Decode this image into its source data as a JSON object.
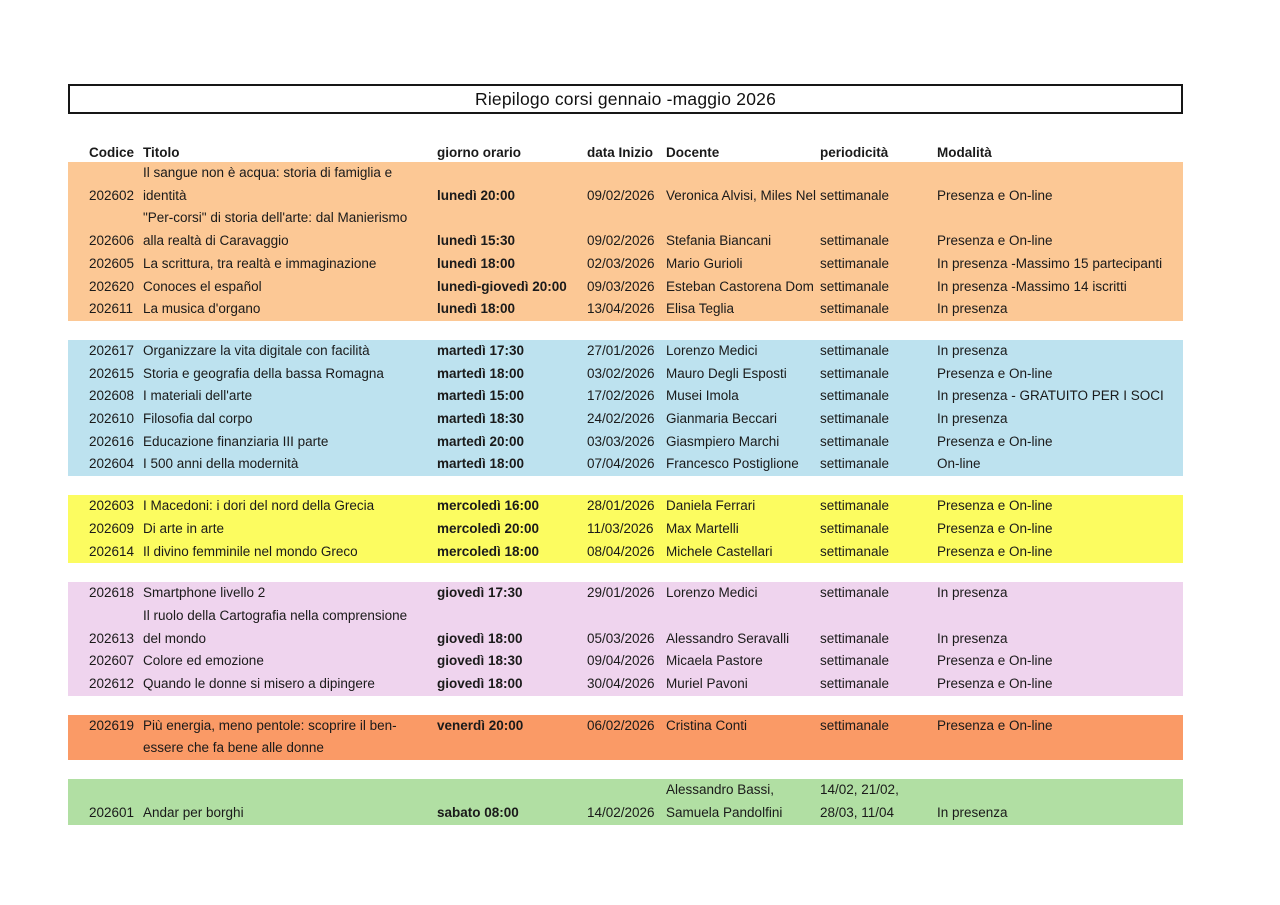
{
  "title": "Riepilogo corsi gennaio -maggio 2026",
  "columns": [
    "Codice",
    "Titolo",
    "giorno orario",
    "data Inizio",
    "Docente",
    "periodicità",
    "Modalità"
  ],
  "groups": [
    {
      "name": "lunedi",
      "color": "#FCC895",
      "lines": [
        [
          "",
          "Il sangue non è acqua: storia di famiglia e",
          "",
          "",
          "",
          "",
          ""
        ],
        [
          "202602",
          "identità",
          "lunedì 20:00",
          "09/02/2026",
          "Veronica Alvisi, Miles Nel",
          "settimanale",
          "Presenza e On-line"
        ],
        [
          "",
          "\"Per-corsi\" di storia dell'arte: dal Manierismo",
          "",
          "",
          "",
          "",
          ""
        ],
        [
          "202606",
          "alla realtà di Caravaggio",
          "lunedì 15:30",
          "09/02/2026",
          "Stefania Biancani",
          "settimanale",
          "Presenza e On-line"
        ],
        [
          "202605",
          "La scrittura, tra realtà e immaginazione",
          "lunedì 18:00",
          "02/03/2026",
          "Mario Gurioli",
          "settimanale",
          "In presenza -Massimo 15 partecipanti"
        ],
        [
          "202620",
          "Conoces el español",
          "lunedì-giovedì 20:00",
          "09/03/2026",
          "Esteban Castorena Dom",
          "settimanale",
          "In presenza -Massimo 14 iscritti"
        ],
        [
          "202611",
          "La musica d'organo",
          "lunedì 18:00",
          "13/04/2026",
          "Elisa Teglia",
          "settimanale",
          "In presenza"
        ]
      ]
    },
    {
      "name": "martedi",
      "color": "#BDE2EF",
      "lines": [
        [
          "202617",
          "Organizzare la vita digitale con facilità",
          "martedì 17:30",
          "27/01/2026",
          "Lorenzo Medici",
          "settimanale",
          "In presenza"
        ],
        [
          "202615",
          "Storia e geografia della bassa Romagna",
          "martedì 18:00",
          "03/02/2026",
          "Mauro Degli Esposti",
          "settimanale",
          "Presenza e On-line"
        ],
        [
          "202608",
          "I materiali dell'arte",
          "martedì 15:00",
          "17/02/2026",
          "Musei Imola",
          "settimanale",
          "In presenza - GRATUITO PER I SOCI"
        ],
        [
          "202610",
          "Filosofia dal corpo",
          "martedì 18:30",
          "24/02/2026",
          "Gianmaria Beccari",
          "settimanale",
          "In presenza"
        ],
        [
          "202616",
          "Educazione finanziaria III parte",
          "martedì 20:00",
          "03/03/2026",
          "Giasmpiero Marchi",
          "settimanale",
          "Presenza e On-line"
        ],
        [
          "202604",
          "I 500 anni della modernità",
          "martedì 18:00",
          "07/04/2026",
          "Francesco Postiglione",
          "settimanale",
          "On-line"
        ]
      ]
    },
    {
      "name": "mercoledi",
      "color": "#FCFC60",
      "lines": [
        [
          "202603",
          "I Macedoni: i dori del nord della Grecia",
          "mercoledì 16:00",
          "28/01/2026",
          "Daniela Ferrari",
          "settimanale",
          "Presenza e On-line"
        ],
        [
          "202609",
          "Di arte in arte",
          "mercoledì 20:00",
          "11/03/2026",
          "Max Martelli",
          "settimanale",
          "Presenza e On-line"
        ],
        [
          "202614",
          "Il divino femminile nel mondo Greco",
          "mercoledì 18:00",
          "08/04/2026",
          "Michele Castellari",
          "settimanale",
          "Presenza e On-line"
        ]
      ]
    },
    {
      "name": "giovedi",
      "color": "#EFD4EE",
      "lines": [
        [
          "202618",
          "Smartphone livello 2",
          "giovedì 17:30",
          "29/01/2026",
          "Lorenzo Medici",
          "settimanale",
          "In presenza"
        ],
        [
          "",
          "Il ruolo della Cartografia nella comprensione",
          "",
          "",
          "",
          "",
          ""
        ],
        [
          "202613",
          "del mondo",
          "giovedì 18:00",
          "05/03/2026",
          "Alessandro Seravalli",
          "settimanale",
          "In presenza"
        ],
        [
          "202607",
          "Colore ed emozione",
          "giovedì 18:30",
          "09/04/2026",
          "Micaela Pastore",
          "settimanale",
          "Presenza e On-line"
        ],
        [
          "202612",
          "Quando le donne si misero a dipingere",
          "giovedì 18:00",
          "30/04/2026",
          "Muriel Pavoni",
          "settimanale",
          "Presenza e On-line"
        ]
      ]
    },
    {
      "name": "venerdi",
      "color": "#FA9A66",
      "lines": [
        [
          "202619",
          "Più energia, meno pentole: scoprire il ben-",
          "venerdì 20:00",
          "06/02/2026",
          "Cristina Conti",
          "settimanale",
          "Presenza e On-line"
        ],
        [
          "",
          "essere che fa bene alle donne",
          "",
          "",
          "",
          "",
          ""
        ]
      ]
    },
    {
      "name": "sabato",
      "color": "#B1DFA3",
      "lines": [
        [
          "",
          "",
          "",
          "",
          "Alessandro Bassi,",
          "14/02, 21/02,",
          ""
        ],
        [
          "202601",
          "Andar per borghi",
          "sabato 08:00",
          "14/02/2026",
          "Samuela Pandolfini",
          "28/03, 11/04",
          "In presenza"
        ]
      ]
    }
  ]
}
